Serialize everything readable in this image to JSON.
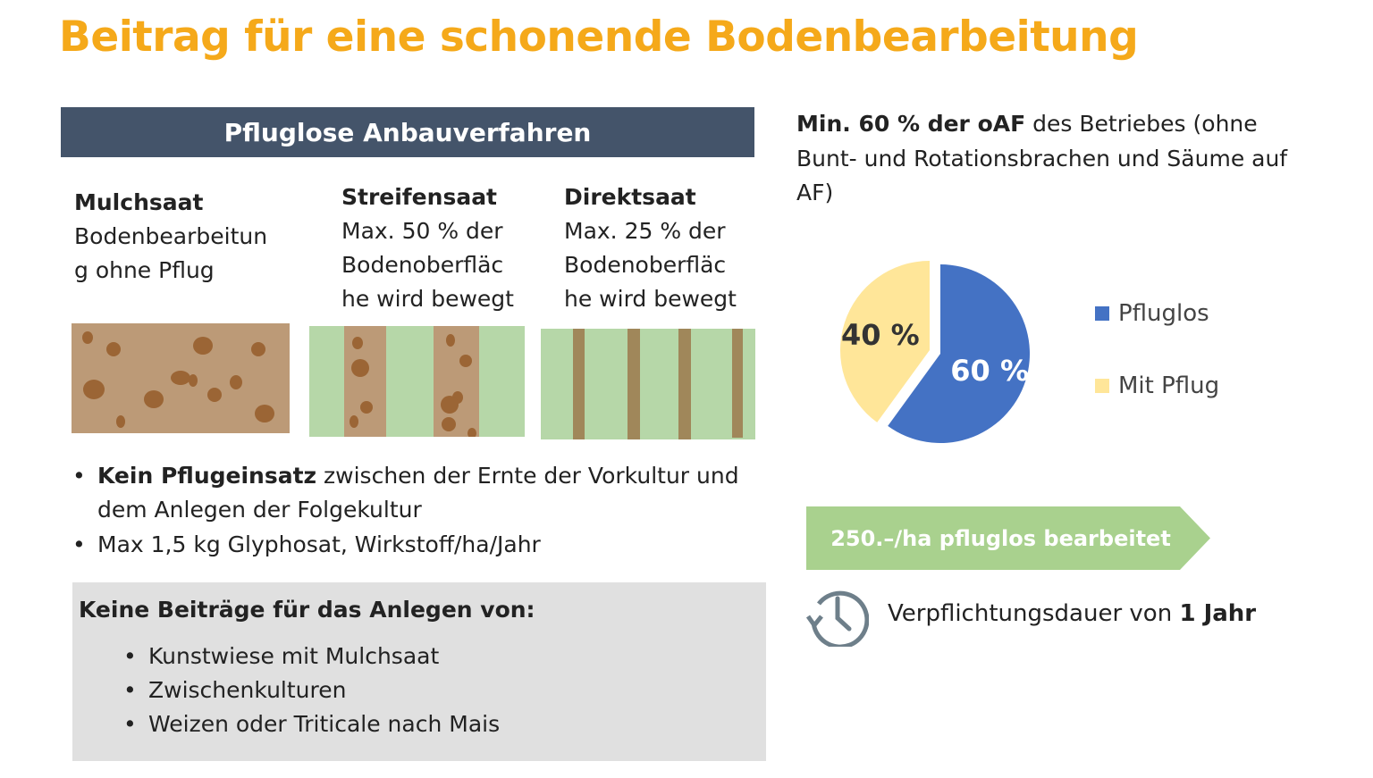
{
  "title": "Beitrag für eine schonende Bodenbearbeitung",
  "section_header": "Pfluglose Anbauverfahren",
  "methods": [
    {
      "name": "Mulchsaat",
      "lines": [
        "Bodenbearbeitun",
        "g ohne Pflug"
      ]
    },
    {
      "name": "Streifensaat",
      "lines": [
        "Max. 50 % der",
        "Bodenoberfläc",
        "he wird bewegt"
      ]
    },
    {
      "name": "Direktsaat",
      "lines": [
        "Max. 25 % der",
        "Bodenoberfläc",
        "he wird bewegt"
      ]
    }
  ],
  "bullets": [
    {
      "bold": "Kein Pflugeinsatz",
      "text": " zwischen der Ernte der Vorkultur und",
      "line2": "dem Anlegen der Folgekultur"
    },
    {
      "bold": "",
      "text": "Max 1,5 kg Glyphosat, Wirkstoff/ha/Jahr",
      "line2": ""
    }
  ],
  "exclusions": {
    "heading": "Keine Beiträge für das Anlegen von:",
    "items": [
      "Kunstwiese mit Mulchsaat",
      "Zwischenkulturen",
      "Weizen oder Triticale nach Mais"
    ]
  },
  "requirement": {
    "bold": "Min. 60 % der oAF",
    "text": " des Betriebes (ohne Bunt- und Rotationsbrachen und Säume auf AF)"
  },
  "chart_data": {
    "type": "pie",
    "slices": [
      {
        "name": "Pfluglos",
        "value": 60,
        "label": "60 %",
        "color": "#4472c4"
      },
      {
        "name": "Mit Pflug",
        "value": 40,
        "label": "40 %",
        "color": "#ffe699"
      }
    ],
    "legend_placement": "right"
  },
  "payment": "250.–/ha pfluglos bearbeitet",
  "duration": {
    "text": "Verpflichtungsdauer von ",
    "bold": "1 Jahr",
    "icon": "clock-history-icon"
  },
  "colors": {
    "title": "#f5a91a",
    "header": "#44546a",
    "arrow": "#a9d18e",
    "soil": "#bc9a77",
    "grass": "#b6d7a8",
    "clod": "#9b6535",
    "strip": "#a0875a"
  }
}
